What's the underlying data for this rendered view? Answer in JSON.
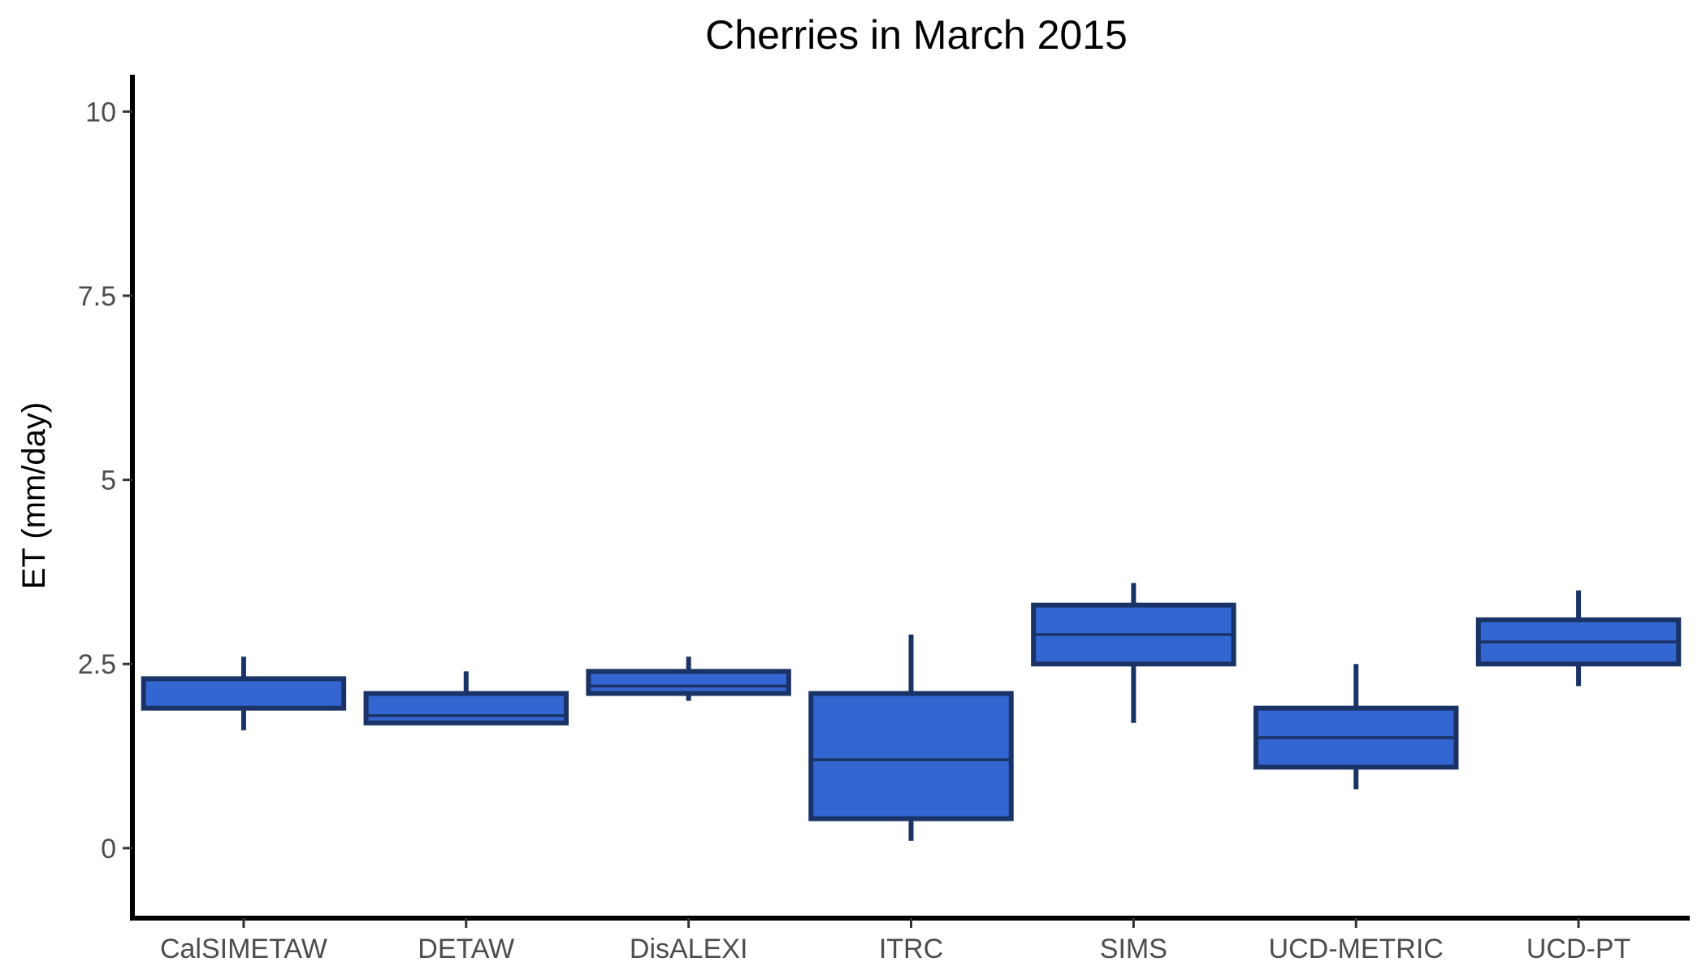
{
  "chart_data": {
    "type": "boxplot",
    "title": "Cherries in March 2015",
    "xlabel": "",
    "ylabel": "ET (mm/day)",
    "ylim": [
      -0.95,
      10.5
    ],
    "yticks": [
      0,
      2.5,
      5,
      7.5,
      10
    ],
    "ytick_labels": [
      "0",
      "2.5",
      "5",
      "7.5",
      "10"
    ],
    "grid": false,
    "legend": "none",
    "fill_color": "#3366d1",
    "line_color": "#1a3366",
    "categories": [
      "CalSIMETAW",
      "DETAW",
      "DisALEXI",
      "ITRC",
      "SIMS",
      "UCD-METRIC",
      "UCD-PT"
    ],
    "boxes": [
      {
        "min": 1.6,
        "q1": 1.9,
        "median": 1.9,
        "q3": 2.3,
        "max": 2.6
      },
      {
        "min": 1.7,
        "q1": 1.7,
        "median": 1.8,
        "q3": 2.1,
        "max": 2.4
      },
      {
        "min": 2.0,
        "q1": 2.1,
        "median": 2.2,
        "q3": 2.4,
        "max": 2.6
      },
      {
        "min": 0.1,
        "q1": 0.4,
        "median": 1.2,
        "q3": 2.1,
        "max": 2.9
      },
      {
        "min": 1.7,
        "q1": 2.5,
        "median": 2.9,
        "q3": 3.3,
        "max": 3.6
      },
      {
        "min": 0.8,
        "q1": 1.1,
        "median": 1.5,
        "q3": 1.9,
        "max": 2.5
      },
      {
        "min": 2.2,
        "q1": 2.5,
        "median": 2.8,
        "q3": 3.1,
        "max": 3.5
      }
    ]
  }
}
